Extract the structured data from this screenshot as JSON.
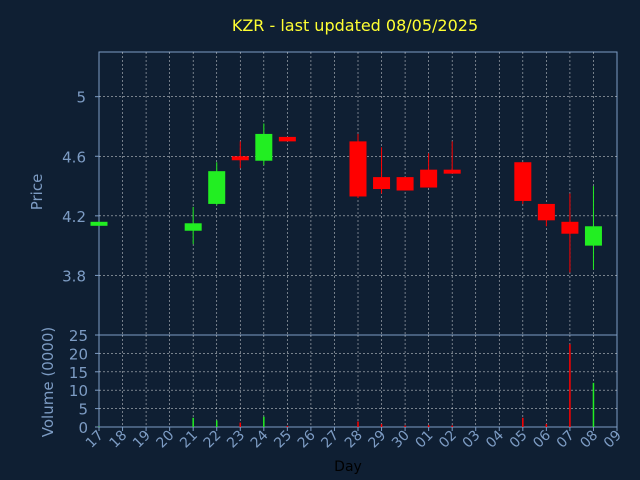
{
  "colors": {
    "background": "#0f1f33",
    "title": "#ffff33",
    "axis_text": "#7d9cc4",
    "grid": "#ffffff",
    "up": "#22ee22",
    "down": "#ff0000"
  },
  "chart_data": [
    {
      "type": "candlestick",
      "title": "KZR - last updated 08/05/2025",
      "ylabel": "Price",
      "ylim": [
        3.4,
        5.3
      ],
      "yticks": [
        "5",
        "4.6",
        "4.2",
        "3.8"
      ],
      "ytick_values": [
        5.0,
        4.6,
        4.2,
        3.8
      ],
      "grid": true,
      "x_labels": [
        "17",
        "18",
        "19",
        "20",
        "21",
        "22",
        "23",
        "24",
        "25",
        "26",
        "27",
        "28",
        "29",
        "30",
        "01",
        "02",
        "03",
        "04",
        "05",
        "06",
        "07",
        "08",
        "09"
      ],
      "candles": [
        {
          "day": "17",
          "open": 4.15,
          "close": 4.16,
          "high": 4.16,
          "low": 4.15
        },
        {
          "day": "21",
          "open": 4.1,
          "close": 4.15,
          "high": 4.26,
          "low": 4.01
        },
        {
          "day": "22",
          "open": 4.28,
          "close": 4.5,
          "high": 4.56,
          "low": 4.27
        },
        {
          "day": "23",
          "open": 4.6,
          "close": 4.58,
          "high": 4.7,
          "low": 4.52
        },
        {
          "day": "24",
          "open": 4.57,
          "close": 4.75,
          "high": 4.82,
          "low": 4.54
        },
        {
          "day": "25",
          "open": 4.73,
          "close": 4.7,
          "high": 4.73,
          "low": 4.7
        },
        {
          "day": "28",
          "open": 4.7,
          "close": 4.33,
          "high": 4.75,
          "low": 4.32
        },
        {
          "day": "29",
          "open": 4.46,
          "close": 4.38,
          "high": 4.66,
          "low": 4.35
        },
        {
          "day": "30",
          "open": 4.46,
          "close": 4.37,
          "high": 4.46,
          "low": 4.37
        },
        {
          "day": "01",
          "open": 4.51,
          "close": 4.39,
          "high": 4.62,
          "low": 4.39
        },
        {
          "day": "02",
          "open": 4.51,
          "close": 4.49,
          "high": 4.7,
          "low": 4.49
        },
        {
          "day": "05",
          "open": 4.56,
          "close": 4.3,
          "high": 4.56,
          "low": 4.28
        },
        {
          "day": "06",
          "open": 4.28,
          "close": 4.17,
          "high": 4.28,
          "low": 4.13
        },
        {
          "day": "07",
          "open": 4.16,
          "close": 4.08,
          "high": 4.35,
          "low": 3.82
        },
        {
          "day": "08",
          "open": 4.0,
          "close": 4.13,
          "high": 4.4,
          "low": 3.84
        }
      ]
    },
    {
      "type": "bar",
      "ylabel": "Volume (0000)",
      "xlabel": "Day",
      "ylim": [
        0,
        25
      ],
      "yticks": [
        "25",
        "20",
        "15",
        "10",
        "5",
        "0"
      ],
      "ytick_values": [
        25,
        20,
        15,
        10,
        5,
        0
      ],
      "grid": true,
      "bars": [
        {
          "day": "17",
          "value": 0.1,
          "direction": "up"
        },
        {
          "day": "21",
          "value": 2.5,
          "direction": "up"
        },
        {
          "day": "22",
          "value": 1.8,
          "direction": "up"
        },
        {
          "day": "23",
          "value": 1.2,
          "direction": "down"
        },
        {
          "day": "24",
          "value": 2.8,
          "direction": "up"
        },
        {
          "day": "25",
          "value": 0.3,
          "direction": "down"
        },
        {
          "day": "28",
          "value": 1.5,
          "direction": "down"
        },
        {
          "day": "29",
          "value": 0.8,
          "direction": "down"
        },
        {
          "day": "30",
          "value": 0.4,
          "direction": "down"
        },
        {
          "day": "01",
          "value": 0.5,
          "direction": "down"
        },
        {
          "day": "02",
          "value": 0.4,
          "direction": "down"
        },
        {
          "day": "05",
          "value": 2.5,
          "direction": "down"
        },
        {
          "day": "06",
          "value": 0.8,
          "direction": "down"
        },
        {
          "day": "07",
          "value": 22.5,
          "direction": "down"
        },
        {
          "day": "08",
          "value": 12.0,
          "direction": "up"
        }
      ]
    }
  ]
}
